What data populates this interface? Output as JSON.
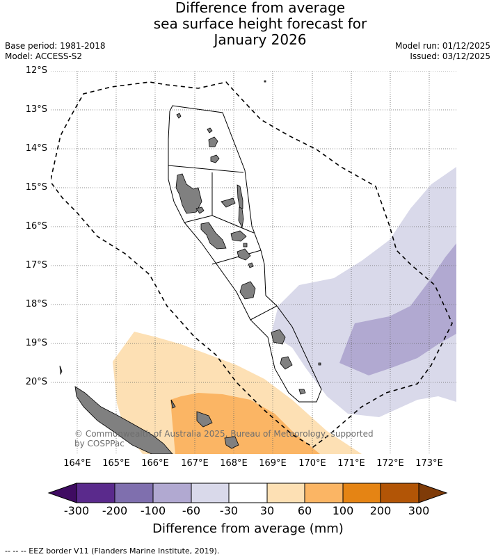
{
  "title": {
    "line1": "Difference from average",
    "line2": "sea surface height forecast for",
    "line3": "January 2026"
  },
  "meta": {
    "base_period": "Base period: 1981-2018",
    "model": "Model: ACCESS-S2",
    "model_run": "Model run: 01/12/2025",
    "issued": "Issued: 03/12/2025"
  },
  "axes": {
    "lat_labels": [
      "12°S",
      "13°S",
      "14°S",
      "15°S",
      "16°S",
      "17°S",
      "18°S",
      "19°S",
      "20°S"
    ],
    "lon_labels": [
      "164°E",
      "165°E",
      "166°E",
      "167°E",
      "168°E",
      "169°E",
      "170°E",
      "171°E",
      "172°E",
      "173°E"
    ]
  },
  "map": {
    "copyright_line1": "© Commonwealth of Australia 2025, Bureau of Meteorology, supported",
    "copyright_line2": "by COSPPac",
    "colors": {
      "land": "#808080",
      "neg_30_60": "#d9d9ea",
      "neg_60_100": "#b1a9d1",
      "pos_30_60": "#fde0b4",
      "pos_60_100": "#fbb564"
    }
  },
  "colorbar": {
    "ticks": [
      "-300",
      "-200",
      "-100",
      "-60",
      "-30",
      "30",
      "60",
      "100",
      "200",
      "300"
    ],
    "colors": [
      "#3f0b62",
      "#5a2a8c",
      "#7f6fae",
      "#b1a9d1",
      "#d9d9ea",
      "#ffffff",
      "#fde0b4",
      "#fbb564",
      "#e58414",
      "#b25506",
      "#7f3b08"
    ],
    "title": "Difference from average (mm)"
  },
  "footer": {
    "eez_note": "-- -- -- EEZ border V11 (Flanders Marine Institute, 2019)."
  }
}
